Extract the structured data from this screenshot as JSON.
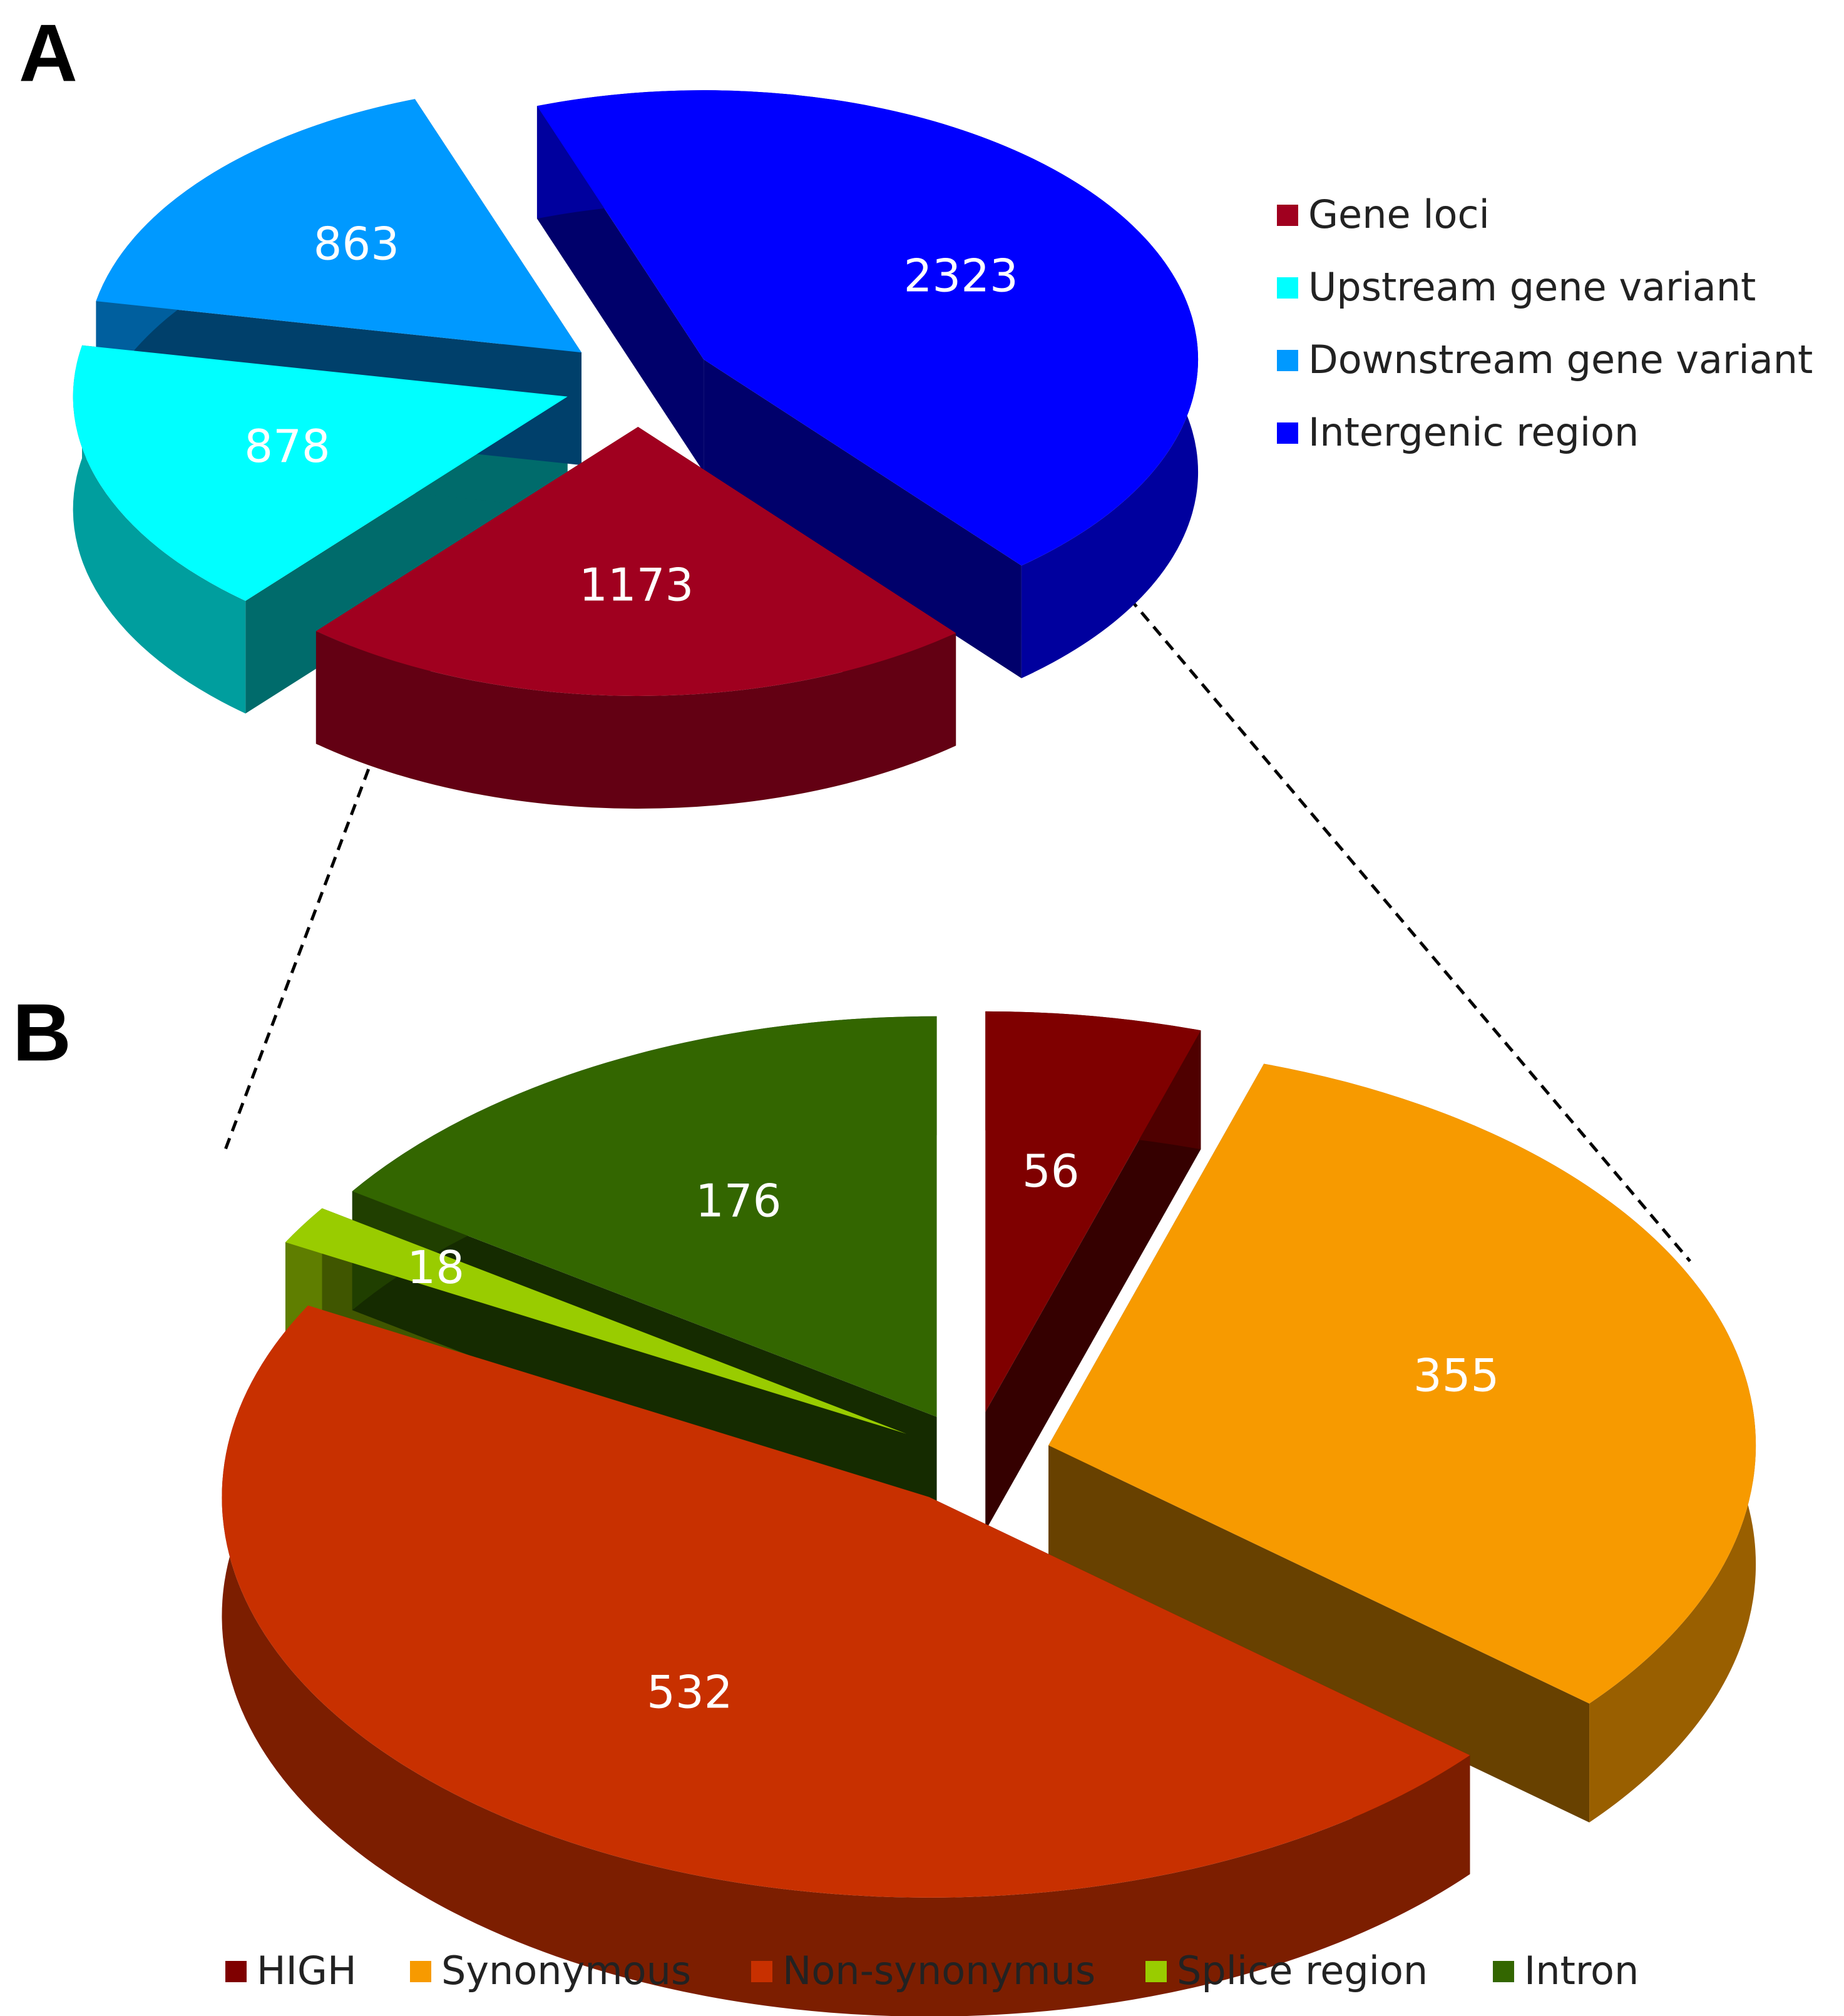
{
  "chart_data": [
    {
      "type": "pie",
      "panel": "A",
      "categories": [
        "Gene loci",
        "Upstream gene variant",
        "Downstream gene variant",
        "Intergenic region"
      ],
      "values": [
        1173,
        878,
        863,
        2323
      ],
      "colors": [
        "#a0001f",
        "#00ffff",
        "#0099ff",
        "#0000ff"
      ],
      "legend": "right"
    },
    {
      "type": "pie",
      "panel": "B",
      "categories": [
        "HIGH",
        "Synonymous",
        "Non-synonymus",
        "Splice region",
        "Intron"
      ],
      "values": [
        56,
        355,
        532,
        18,
        176
      ],
      "colors": [
        "#7f0000",
        "#f79a00",
        "#c83000",
        "#99cc00",
        "#336600"
      ],
      "legend": "bottom"
    }
  ]
}
